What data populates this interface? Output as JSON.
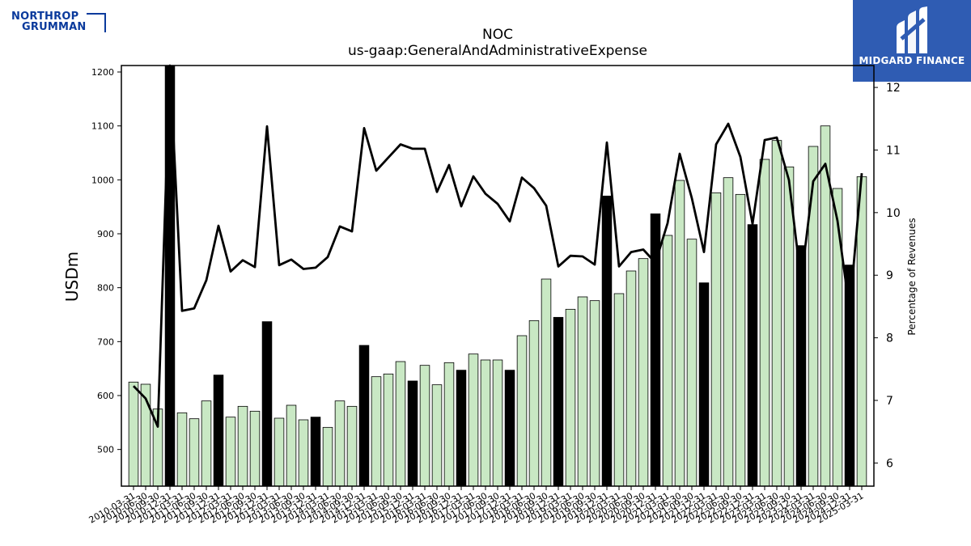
{
  "header": {
    "company_logo": "NORTHROP GRUMMAN",
    "company_logo_line1": "NORTHROP",
    "company_logo_line2": "GRUMMAN",
    "brand": "MIDGARD FINANCE"
  },
  "colors": {
    "bar_normal": "#c9e8c4",
    "bar_highlight": "#000000",
    "bar_edge": "#000000",
    "line": "#000000",
    "logo_blue": "#0a3a9c",
    "brand_bg": "#2f5cb3"
  },
  "chart_data": {
    "type": "bar",
    "title": "NOC",
    "subtitle": "us-gaap:GeneralAndAdministrativeExpense",
    "ylabel": "USDm",
    "y2label": "Percentage of Revenues",
    "ylim": [
      432,
      1212
    ],
    "y2lim": [
      5.63,
      12.35
    ],
    "yticks": [
      500,
      600,
      700,
      800,
      900,
      1000,
      1100,
      1200
    ],
    "y2ticks": [
      6,
      7,
      8,
      9,
      10,
      11,
      12
    ],
    "grid": false,
    "categories": [
      "2010-03-31",
      "2010-06-30",
      "2010-09-30",
      "2010-12-31",
      "2011-03-31",
      "2011-06-30",
      "2011-09-30",
      "2011-12-31",
      "2012-03-31",
      "2012-06-30",
      "2012-09-30",
      "2012-12-31",
      "2013-03-31",
      "2013-06-30",
      "2013-09-30",
      "2013-12-31",
      "2014-03-31",
      "2014-06-30",
      "2014-09-30",
      "2014-12-31",
      "2015-03-31",
      "2015-06-30",
      "2015-09-30",
      "2015-12-31",
      "2016-03-31",
      "2016-06-30",
      "2016-09-30",
      "2016-12-31",
      "2017-03-31",
      "2017-06-30",
      "2017-09-30",
      "2017-12-31",
      "2018-03-31",
      "2018-06-30",
      "2018-09-30",
      "2018-12-31",
      "2019-03-31",
      "2019-06-30",
      "2019-09-30",
      "2019-12-31",
      "2020-03-31",
      "2020-06-30",
      "2020-09-30",
      "2020-12-31",
      "2021-03-31",
      "2021-06-30",
      "2021-09-30",
      "2021-12-31",
      "2022-03-31",
      "2022-06-30",
      "2022-09-30",
      "2022-12-31",
      "2023-03-31",
      "2023-06-30",
      "2023-09-30",
      "2023-12-31",
      "2024-03-31",
      "2024-06-30",
      "2024-09-30",
      "2024-12-31",
      "2025-03-31"
    ],
    "xtick_labels": [
      "2010-03-31",
      "2010-06-30",
      "2010-09-30",
      "2010-12-31",
      "2011-03-31",
      "2011-06-30",
      "2011-09-30",
      "2011-12-31",
      "2012-03-31",
      "2012-06-30",
      "2012-09-30",
      "2012-12-31",
      "2013-03-31",
      "2013-06-30",
      "2013-09-30",
      "2013-12-31",
      "2014-03-31",
      "2014-06-30",
      "2014-09-30",
      "2014-12-31",
      "2015-03-31",
      "2015-06-30",
      "2015-09-30",
      "2015-12-31",
      "2016-03-31",
      "2016-06-30",
      "2016-09-30",
      "2016-12-31",
      "2017-03-31",
      "2017-06-30",
      "2017-09-30",
      "2017-12-31",
      "2018-03-31",
      "2018-06-30",
      "2018-09-30",
      "2018-12-31",
      "2019-03-31",
      "2019-06-30",
      "2019-09-30",
      "2019-12-31",
      "2020-03-31",
      "2020-06-30",
      "2020-09-30",
      "2020-12-31",
      "2021-03-31",
      "2021-06-30",
      "2021-09-30",
      "2021-12-31",
      "2022-03-31",
      "2022-06-30",
      "2022-09-30",
      "2022-12-31",
      "2023-03-31",
      "2023-06-30",
      "2023-09-30",
      "2023-12-31",
      "2024-03-31",
      "2024-06-30",
      "2024-09-30",
      "2024-12-31",
      "2025-03-31"
    ],
    "series": [
      {
        "type": "bar",
        "axis": "left",
        "values": [
          625,
          621,
          575,
          1212,
          568,
          557,
          590,
          638,
          560,
          580,
          571,
          737,
          558,
          582,
          555,
          560,
          541,
          590,
          580,
          693,
          635,
          640,
          663,
          627,
          656,
          620,
          661,
          647,
          677,
          666,
          666,
          647,
          711,
          739,
          816,
          745,
          760,
          783,
          776,
          970,
          789,
          831,
          854,
          937,
          897,
          999,
          890,
          809,
          976,
          1004,
          973,
          917,
          1038,
          1073,
          1024,
          878,
          1062,
          1100,
          984,
          842,
          1006
        ],
        "highlight": [
          false,
          false,
          false,
          true,
          false,
          false,
          false,
          true,
          false,
          false,
          false,
          true,
          false,
          false,
          false,
          true,
          false,
          false,
          false,
          true,
          false,
          false,
          false,
          true,
          false,
          false,
          false,
          true,
          false,
          false,
          false,
          true,
          false,
          false,
          false,
          true,
          false,
          false,
          false,
          true,
          false,
          false,
          false,
          true,
          false,
          false,
          false,
          true,
          false,
          false,
          false,
          true,
          false,
          false,
          false,
          true,
          false,
          false,
          false,
          true,
          false
        ]
      },
      {
        "type": "line",
        "axis": "right",
        "values": [
          7.23,
          7.03,
          6.58,
          12.35,
          8.43,
          8.47,
          8.92,
          9.79,
          9.06,
          9.24,
          9.13,
          11.38,
          9.16,
          9.25,
          9.1,
          9.12,
          9.29,
          9.78,
          9.7,
          11.35,
          10.67,
          10.88,
          11.09,
          11.02,
          11.02,
          10.33,
          10.76,
          10.1,
          10.58,
          10.3,
          10.14,
          9.86,
          10.56,
          10.39,
          10.11,
          9.14,
          9.31,
          9.3,
          9.17,
          11.12,
          9.14,
          9.37,
          9.41,
          9.2,
          9.83,
          10.94,
          10.23,
          9.37,
          11.09,
          11.42,
          10.89,
          9.82,
          11.16,
          11.2,
          10.52,
          8.9,
          10.5,
          10.78,
          9.87,
          8.44,
          10.63
        ]
      }
    ]
  }
}
